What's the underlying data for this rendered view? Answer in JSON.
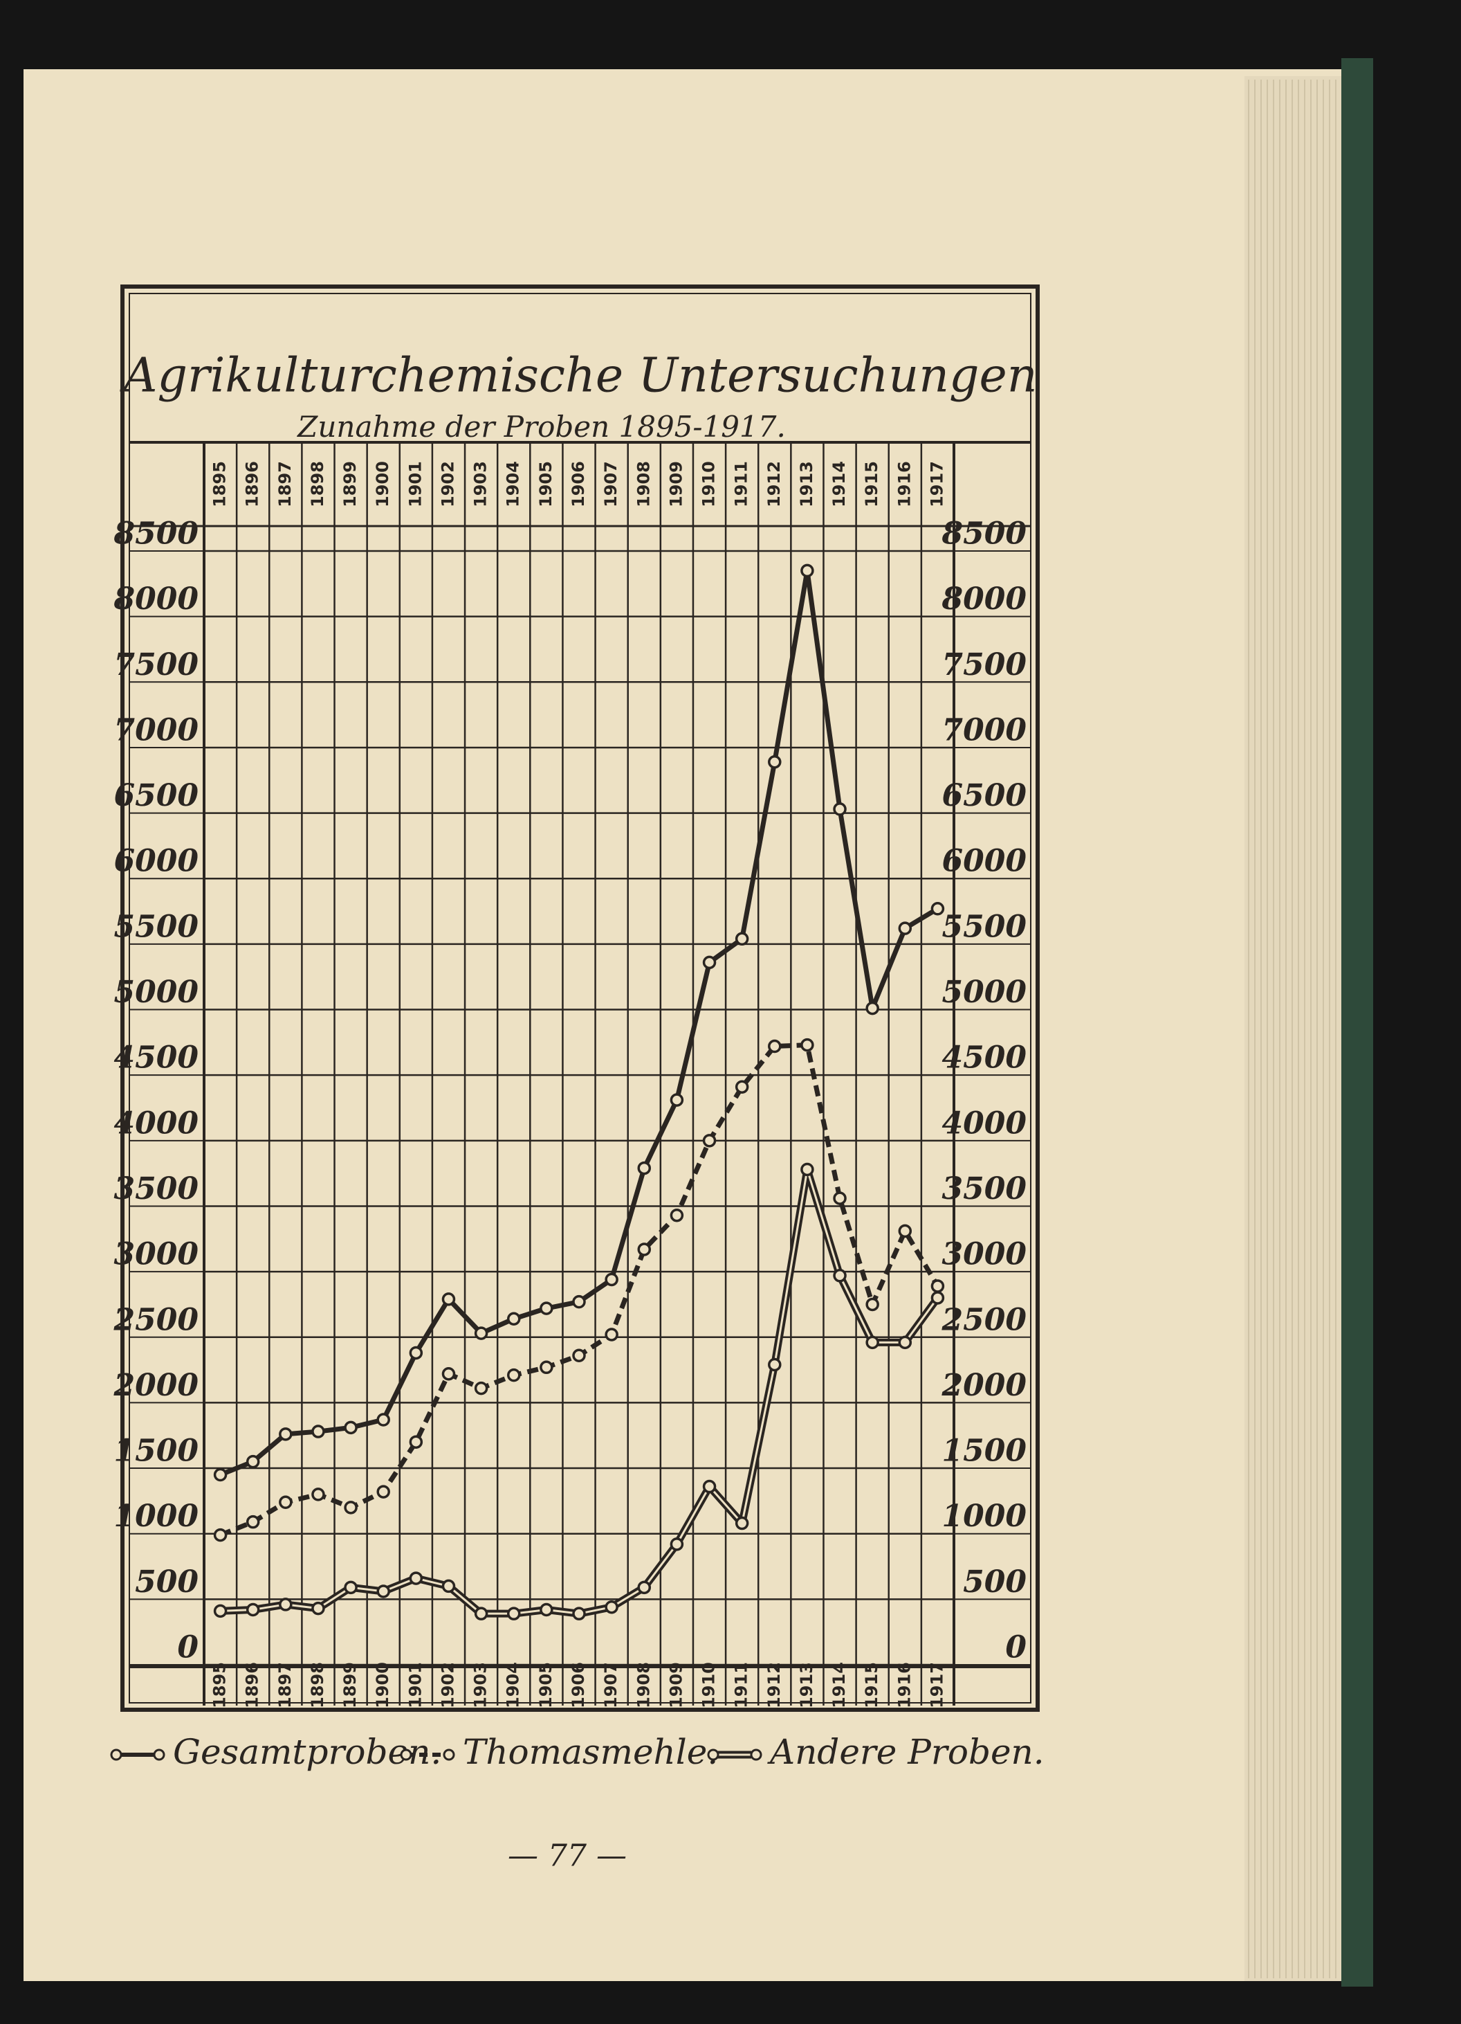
{
  "chart_data": {
    "type": "line",
    "title": "Agrikulturchemische Untersuchungen",
    "subtitle": "Zunahme der Proben 1895-1917.",
    "categories": [
      "1895",
      "1896",
      "1897",
      "1898",
      "1899",
      "1900",
      "1901",
      "1902",
      "1903",
      "1904",
      "1905",
      "1906",
      "1907",
      "1908",
      "1909",
      "1910",
      "1911",
      "1912",
      "1913",
      "1914",
      "1915",
      "1916",
      "1917"
    ],
    "series": [
      {
        "name": "Gesamtproben.",
        "color": "#2a2521",
        "line_style": "solid",
        "values": [
          1450,
          1550,
          1760,
          1780,
          1810,
          1870,
          2380,
          2790,
          2530,
          2640,
          2720,
          2770,
          2940,
          3790,
          4310,
          5360,
          5540,
          6890,
          8350,
          6530,
          5010,
          5620,
          5770
        ]
      },
      {
        "name": "Thomasmehle.",
        "color": "#2a2521",
        "line_style": "dashed",
        "values": [
          990,
          1090,
          1240,
          1300,
          1200,
          1320,
          1700,
          2220,
          2110,
          2210,
          2270,
          2360,
          2520,
          3170,
          3430,
          4000,
          4410,
          4720,
          4730,
          3560,
          2750,
          3310,
          2890
        ]
      },
      {
        "name": "Andere Proben.",
        "color": "#2a2521",
        "line_style": "double",
        "values": [
          410,
          420,
          460,
          430,
          590,
          560,
          660,
          600,
          390,
          390,
          420,
          390,
          440,
          590,
          920,
          1360,
          1080,
          2290,
          3780,
          2970,
          2460,
          2460,
          2800
        ]
      }
    ],
    "ylim": [
      0,
      8500
    ],
    "yticks": [
      0,
      500,
      1000,
      1500,
      2000,
      2500,
      3000,
      3500,
      4000,
      4500,
      5000,
      5500,
      6000,
      6500,
      7000,
      7500,
      8000,
      8500
    ],
    "grid": true
  },
  "page_number": "— 77 —"
}
